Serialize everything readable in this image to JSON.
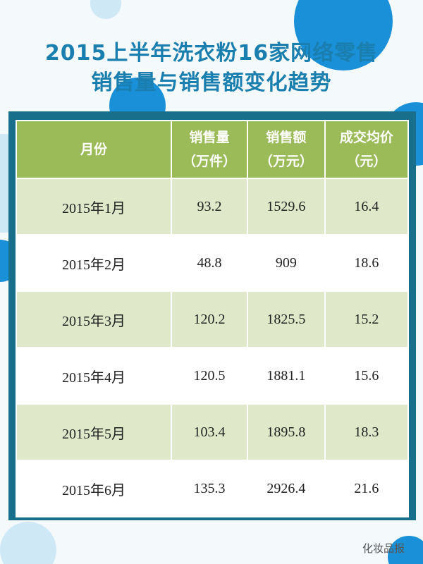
{
  "header": {
    "title_lines": [
      "2015上半年洗衣粉16家网络零售",
      "销售量与销售额变化趋势"
    ]
  },
  "table": {
    "columns": [
      [
        "月份"
      ],
      [
        "销售量",
        "（万件）"
      ],
      [
        "销售额",
        "（万元）"
      ],
      [
        "成交均价",
        "（元）"
      ]
    ],
    "rows": [
      [
        "2015年1月",
        "93.2",
        "1529.6",
        "16.4"
      ],
      [
        "2015年2月",
        "48.8",
        "909",
        "18.6"
      ],
      [
        "2015年3月",
        "120.2",
        "1825.5",
        "15.2"
      ],
      [
        "2015年4月",
        "120.5",
        "1881.1",
        "15.6"
      ],
      [
        "2015年5月",
        "103.4",
        "1895.8",
        "18.3"
      ],
      [
        "2015年6月",
        "135.3",
        "2926.4",
        "21.6"
      ]
    ]
  },
  "watermark": "化妆品报"
}
